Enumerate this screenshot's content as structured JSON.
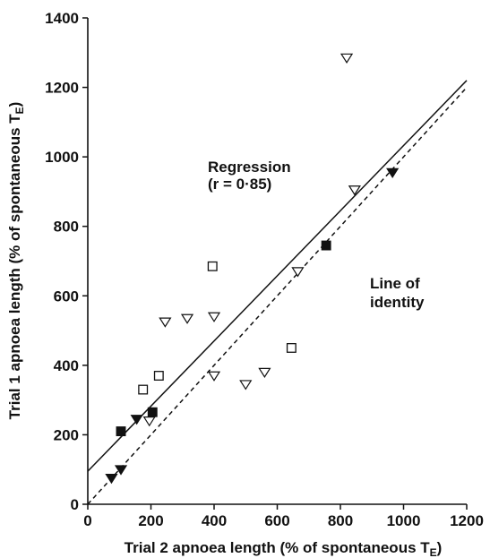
{
  "chart_data": {
    "type": "scatter",
    "title": "",
    "xlabel": "Trial 2 apnoea length (% of spontaneous T",
    "xlabel_sub": "E",
    "xlabel_end": ")",
    "ylabel": "Trial 1 apnoea length (% of spontaneous T",
    "ylabel_sub": "E",
    "ylabel_end": ")",
    "xlim": [
      0,
      1200
    ],
    "ylim": [
      0,
      1400
    ],
    "xticks": [
      0,
      200,
      400,
      600,
      800,
      1000,
      1200
    ],
    "yticks": [
      0,
      200,
      400,
      600,
      800,
      1000,
      1200,
      1400
    ],
    "grid": false,
    "regression": {
      "label_line1": "Regression",
      "label_line2": "(r = 0·85)",
      "start": [
        0,
        95
      ],
      "end": [
        1200,
        1220
      ]
    },
    "identity": {
      "label_line1": "Line of",
      "label_line2": "identity",
      "start": [
        0,
        0
      ],
      "end": [
        1200,
        1200
      ]
    },
    "series": [
      {
        "marker": "open-triangle-down",
        "points": [
          [
            820,
            1285
          ],
          [
            845,
            905
          ],
          [
            665,
            670
          ],
          [
            245,
            525
          ],
          [
            315,
            535
          ],
          [
            400,
            540
          ],
          [
            400,
            370
          ],
          [
            500,
            345
          ],
          [
            560,
            380
          ],
          [
            195,
            240
          ]
        ]
      },
      {
        "marker": "filled-triangle-down",
        "points": [
          [
            965,
            955
          ],
          [
            75,
            75
          ],
          [
            105,
            100
          ],
          [
            155,
            245
          ]
        ]
      },
      {
        "marker": "open-square",
        "points": [
          [
            395,
            685
          ],
          [
            645,
            450
          ],
          [
            225,
            370
          ],
          [
            175,
            330
          ]
        ]
      },
      {
        "marker": "filled-square",
        "points": [
          [
            755,
            745
          ],
          [
            105,
            210
          ],
          [
            205,
            265
          ]
        ]
      }
    ]
  }
}
